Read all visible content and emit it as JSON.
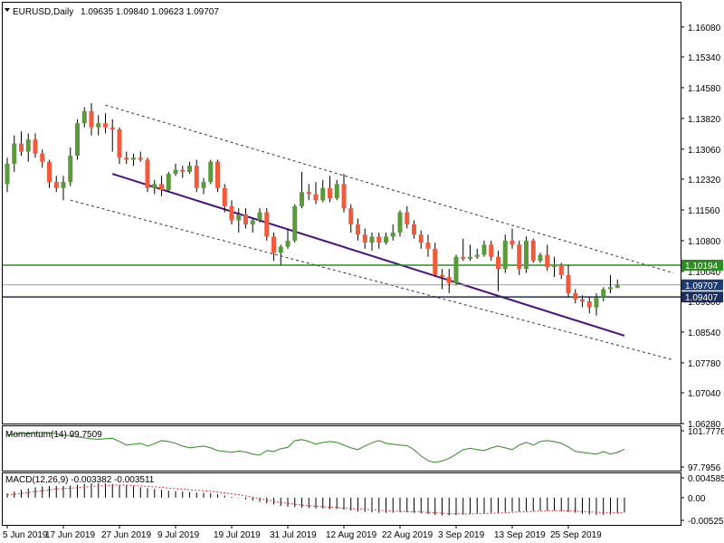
{
  "header": {
    "symbol": "EURUSD,Daily",
    "ohlc": "1.09635 1.09840 1.09623 1.09707"
  },
  "colors": {
    "bull": "#5a9a3a",
    "bear": "#f05a3c",
    "wick": "#000000",
    "horizontal_line": "#2e8b22",
    "support_trend": "#4b0f7a",
    "channel": "#333333",
    "momentum_line": "#2e8b22",
    "macd_signal": "#e03030",
    "price_label_bg": "#1f3b73"
  },
  "chart_data": [
    {
      "type": "candlestick",
      "name": "EURUSD,Daily",
      "x_labels": [
        "5 Jun 2019",
        "17 Jun 2019",
        "27 Jun 2019",
        "9 Jul 2019",
        "19 Jul 2019",
        "31 Jul 2019",
        "12 Aug 2019",
        "22 Aug 2019",
        "3 Sep 2019",
        "13 Sep 2019",
        "25 Sep 2019"
      ],
      "x_label_index": [
        0,
        8,
        16,
        24,
        32,
        40,
        48,
        56,
        64,
        72,
        80
      ],
      "y_ticks": [
        "1.16080",
        "1.15340",
        "1.14580",
        "1.13820",
        "1.13060",
        "1.12320",
        "1.11560",
        "1.10800",
        "1.10040",
        "1.09300",
        "1.08540",
        "1.07780",
        "1.07040",
        "1.06280"
      ],
      "ylim": [
        1.0628,
        1.1668
      ],
      "ohlc": [
        [
          1.122,
          1.1285,
          1.12,
          1.127
        ],
        [
          1.127,
          1.134,
          1.125,
          1.132
        ],
        [
          1.132,
          1.135,
          1.129,
          1.13
        ],
        [
          1.13,
          1.1345,
          1.1275,
          1.133
        ],
        [
          1.133,
          1.1345,
          1.1285,
          1.1295
        ],
        [
          1.1295,
          1.1305,
          1.126,
          1.1275
        ],
        [
          1.1275,
          1.128,
          1.121,
          1.1225
        ],
        [
          1.1225,
          1.124,
          1.12,
          1.121
        ],
        [
          1.121,
          1.124,
          1.118,
          1.1225
        ],
        [
          1.1225,
          1.131,
          1.1215,
          1.129
        ],
        [
          1.129,
          1.138,
          1.128,
          1.137
        ],
        [
          1.137,
          1.141,
          1.136,
          1.14
        ],
        [
          1.14,
          1.142,
          1.134,
          1.136
        ],
        [
          1.136,
          1.139,
          1.134,
          1.137
        ],
        [
          1.137,
          1.1395,
          1.1345,
          1.136
        ],
        [
          1.136,
          1.138,
          1.13,
          1.1355
        ],
        [
          1.1355,
          1.136,
          1.127,
          1.1285
        ],
        [
          1.1285,
          1.13,
          1.127,
          1.128
        ],
        [
          1.128,
          1.1295,
          1.1265,
          1.1285
        ],
        [
          1.1285,
          1.13,
          1.1275,
          1.128
        ],
        [
          1.128,
          1.1285,
          1.12,
          1.121
        ],
        [
          1.121,
          1.123,
          1.1195,
          1.122
        ],
        [
          1.122,
          1.124,
          1.119,
          1.1205
        ],
        [
          1.1205,
          1.125,
          1.12,
          1.1245
        ],
        [
          1.1245,
          1.127,
          1.124,
          1.1255
        ],
        [
          1.1255,
          1.1265,
          1.1235,
          1.125
        ],
        [
          1.125,
          1.1275,
          1.1245,
          1.1265
        ],
        [
          1.1265,
          1.128,
          1.12,
          1.121
        ],
        [
          1.121,
          1.1235,
          1.1195,
          1.1225
        ],
        [
          1.1225,
          1.128,
          1.122,
          1.1275
        ],
        [
          1.1275,
          1.128,
          1.12,
          1.121
        ],
        [
          1.121,
          1.122,
          1.115,
          1.1165
        ],
        [
          1.1165,
          1.118,
          1.112,
          1.113
        ],
        [
          1.113,
          1.116,
          1.11,
          1.1145
        ],
        [
          1.1145,
          1.116,
          1.111,
          1.112
        ],
        [
          1.112,
          1.1135,
          1.11,
          1.113
        ],
        [
          1.113,
          1.116,
          1.1125,
          1.115
        ],
        [
          1.115,
          1.116,
          1.108,
          1.109
        ],
        [
          1.109,
          1.11,
          1.103,
          1.105
        ],
        [
          1.105,
          1.107,
          1.102,
          1.1065
        ],
        [
          1.1065,
          1.111,
          1.106,
          1.108
        ],
        [
          1.108,
          1.117,
          1.1075,
          1.1165
        ],
        [
          1.1165,
          1.125,
          1.116,
          1.12
        ],
        [
          1.12,
          1.122,
          1.118,
          1.1195
        ],
        [
          1.1195,
          1.1225,
          1.117,
          1.118
        ],
        [
          1.118,
          1.123,
          1.1175,
          1.121
        ],
        [
          1.121,
          1.124,
          1.1175,
          1.1185
        ],
        [
          1.1185,
          1.123,
          1.118,
          1.122
        ],
        [
          1.122,
          1.1245,
          1.115,
          1.116
        ],
        [
          1.116,
          1.117,
          1.11,
          1.112
        ],
        [
          1.112,
          1.1135,
          1.108,
          1.1095
        ],
        [
          1.1095,
          1.111,
          1.106,
          1.1075
        ],
        [
          1.1075,
          1.11,
          1.1055,
          1.109
        ],
        [
          1.109,
          1.11,
          1.106,
          1.1075
        ],
        [
          1.1075,
          1.11,
          1.107,
          1.109
        ],
        [
          1.109,
          1.112,
          1.108,
          1.11
        ],
        [
          1.11,
          1.1155,
          1.109,
          1.115
        ],
        [
          1.115,
          1.1165,
          1.111,
          1.112
        ],
        [
          1.112,
          1.113,
          1.1085,
          1.1095
        ],
        [
          1.1095,
          1.1105,
          1.106,
          1.1075
        ],
        [
          1.1075,
          1.1095,
          1.104,
          1.106
        ],
        [
          1.106,
          1.1075,
          1.099,
          1.0995
        ],
        [
          1.0995,
          1.101,
          1.096,
          1.099
        ],
        [
          1.099,
          1.101,
          1.095,
          1.0975
        ],
        [
          1.0975,
          1.1045,
          1.097,
          1.104
        ],
        [
          1.104,
          1.1085,
          1.103,
          1.1035
        ],
        [
          1.1035,
          1.107,
          1.103,
          1.104
        ],
        [
          1.104,
          1.106,
          1.1035,
          1.1045
        ],
        [
          1.1045,
          1.108,
          1.104,
          1.107
        ],
        [
          1.107,
          1.108,
          1.103,
          1.104
        ],
        [
          1.104,
          1.1055,
          1.0955,
          1.101
        ],
        [
          1.101,
          1.1095,
          1.1,
          1.108
        ],
        [
          1.108,
          1.111,
          1.106,
          1.107
        ],
        [
          1.107,
          1.108,
          1.0995,
          1.101
        ],
        [
          1.101,
          1.109,
          1.1,
          1.108
        ],
        [
          1.108,
          1.1085,
          1.1025,
          1.103
        ],
        [
          1.103,
          1.105,
          1.1025,
          1.1045
        ],
        [
          1.1045,
          1.107,
          1.1005,
          1.1015
        ],
        [
          1.1015,
          1.104,
          1.099,
          1.102
        ],
        [
          1.102,
          1.1025,
          1.0985,
          1.0995
        ],
        [
          1.0995,
          1.102,
          1.094,
          1.095
        ],
        [
          1.095,
          1.096,
          1.0925,
          1.0935
        ],
        [
          1.0935,
          1.0945,
          1.0915,
          1.093
        ],
        [
          1.093,
          1.094,
          1.09,
          1.0915
        ],
        [
          1.0915,
          1.095,
          1.0895,
          1.094
        ],
        [
          1.094,
          1.0965,
          1.093,
          1.096
        ],
        [
          1.096,
          1.0995,
          1.095,
          1.0965
        ],
        [
          1.09635,
          1.0984,
          1.09623,
          1.09707
        ]
      ],
      "horizontal_lines": [
        {
          "value": 1.10194,
          "label": "1.10194"
        },
        {
          "value": 1.09407,
          "label": "1.09407"
        }
      ],
      "current_price": {
        "value": 1.09707,
        "label": "1.09707"
      },
      "support_trendline": {
        "x": [
          15,
          88
        ],
        "y": [
          1.1245,
          1.0845
        ]
      },
      "channel_upper": {
        "x": [
          14,
          95
        ],
        "y": [
          1.1415,
          1.1
        ]
      },
      "channel_lower": {
        "x": [
          9,
          95
        ],
        "y": [
          1.118,
          1.0785
        ]
      }
    },
    {
      "type": "line",
      "name": "Momentum(14)",
      "header": "Momentum(14) 99.7509",
      "y_ticks": [
        "101.7776",
        "97.7956"
      ],
      "ylim": [
        97.7956,
        101.7776
      ],
      "values": [
        101.3,
        101.4,
        101.5,
        101.5,
        101.55,
        101.6,
        101.55,
        101.45,
        101.3,
        101.25,
        101.1,
        101.0,
        100.9,
        100.85,
        100.9,
        100.95,
        100.6,
        100.2,
        100.3,
        100.4,
        100.1,
        100.35,
        100.7,
        100.6,
        100.4,
        100.1,
        99.9,
        100.0,
        100.1,
        99.9,
        99.6,
        99.5,
        99.4,
        99.55,
        99.45,
        99.2,
        99.1,
        99.6,
        99.5,
        99.8,
        99.95,
        100.7,
        100.8,
        100.6,
        100.3,
        100.5,
        100.6,
        100.5,
        100.2,
        99.9,
        99.7,
        100.1,
        100.45,
        100.7,
        100.4,
        100.3,
        100.2,
        100.15,
        99.7,
        99.0,
        98.5,
        98.3,
        98.45,
        98.75,
        99.2,
        99.7,
        99.85,
        99.7,
        99.6,
        99.9,
        100.1,
        99.9,
        99.7,
        100.2,
        100.5,
        100.2,
        100.6,
        100.7,
        100.6,
        100.4,
        100.0,
        99.5,
        99.4,
        99.3,
        99.2,
        99.5,
        99.2,
        99.4,
        99.7509
      ]
    },
    {
      "type": "bar",
      "name": "MACD(12,26,9)",
      "header": "MACD(12,26,9) -0.003382 -0.003511",
      "y_ticks": [
        "0.004585",
        "0.00",
        "-0.005254"
      ],
      "ylim": [
        -0.005254,
        0.004585
      ],
      "macd": [
        0.001,
        0.0014,
        0.0018,
        0.0021,
        0.0024,
        0.0026,
        0.0027,
        0.0027,
        0.0027,
        0.0028,
        0.003,
        0.0032,
        0.0033,
        0.0033,
        0.0033,
        0.0032,
        0.003,
        0.0028,
        0.0026,
        0.0024,
        0.0022,
        0.002,
        0.0018,
        0.0016,
        0.0015,
        0.0014,
        0.0013,
        0.0012,
        0.0011,
        0.001,
        0.0008,
        0.0005,
        0.0002,
        -0.0001,
        -0.0004,
        -0.0007,
        -0.001,
        -0.0013,
        -0.0016,
        -0.0019,
        -0.0021,
        -0.0022,
        -0.0023,
        -0.0024,
        -0.0025,
        -0.0025,
        -0.0026,
        -0.0026,
        -0.0028,
        -0.003,
        -0.0032,
        -0.0033,
        -0.0034,
        -0.0035,
        -0.0035,
        -0.0035,
        -0.0034,
        -0.0034,
        -0.0035,
        -0.0036,
        -0.0038,
        -0.004,
        -0.0041,
        -0.0041,
        -0.004,
        -0.0039,
        -0.0038,
        -0.0037,
        -0.0036,
        -0.0035,
        -0.0035,
        -0.0033,
        -0.0032,
        -0.0032,
        -0.0031,
        -0.0031,
        -0.003,
        -0.003,
        -0.003,
        -0.0031,
        -0.0033,
        -0.0035,
        -0.0037,
        -0.0039,
        -0.004,
        -0.004,
        -0.0039,
        -0.0037,
        -0.003382
      ],
      "signal": [
        0.0006,
        0.0008,
        0.001,
        0.0012,
        0.0014,
        0.0016,
        0.0018,
        0.002,
        0.0021,
        0.0022,
        0.0023,
        0.0025,
        0.0026,
        0.0027,
        0.0028,
        0.0029,
        0.0029,
        0.0029,
        0.0028,
        0.0027,
        0.0026,
        0.0025,
        0.0024,
        0.0022,
        0.0021,
        0.002,
        0.0018,
        0.0017,
        0.0016,
        0.0015,
        0.0013,
        0.0011,
        0.0009,
        0.0007,
        0.0004,
        0.0001,
        -0.0002,
        -0.0005,
        -0.0008,
        -0.0011,
        -0.0013,
        -0.0015,
        -0.0017,
        -0.0019,
        -0.002,
        -0.0021,
        -0.0022,
        -0.0023,
        -0.0024,
        -0.0025,
        -0.0026,
        -0.0027,
        -0.0028,
        -0.0029,
        -0.003,
        -0.0031,
        -0.0032,
        -0.0032,
        -0.0033,
        -0.0033,
        -0.0034,
        -0.0035,
        -0.0036,
        -0.0037,
        -0.0037,
        -0.0038,
        -0.0038,
        -0.0037,
        -0.0037,
        -0.0036,
        -0.0036,
        -0.0035,
        -0.0034,
        -0.0033,
        -0.0033,
        -0.0032,
        -0.0031,
        -0.0031,
        -0.003,
        -0.003,
        -0.0031,
        -0.0031,
        -0.0032,
        -0.0033,
        -0.0034,
        -0.0035,
        -0.0035,
        -0.0035,
        -0.003511
      ]
    }
  ]
}
